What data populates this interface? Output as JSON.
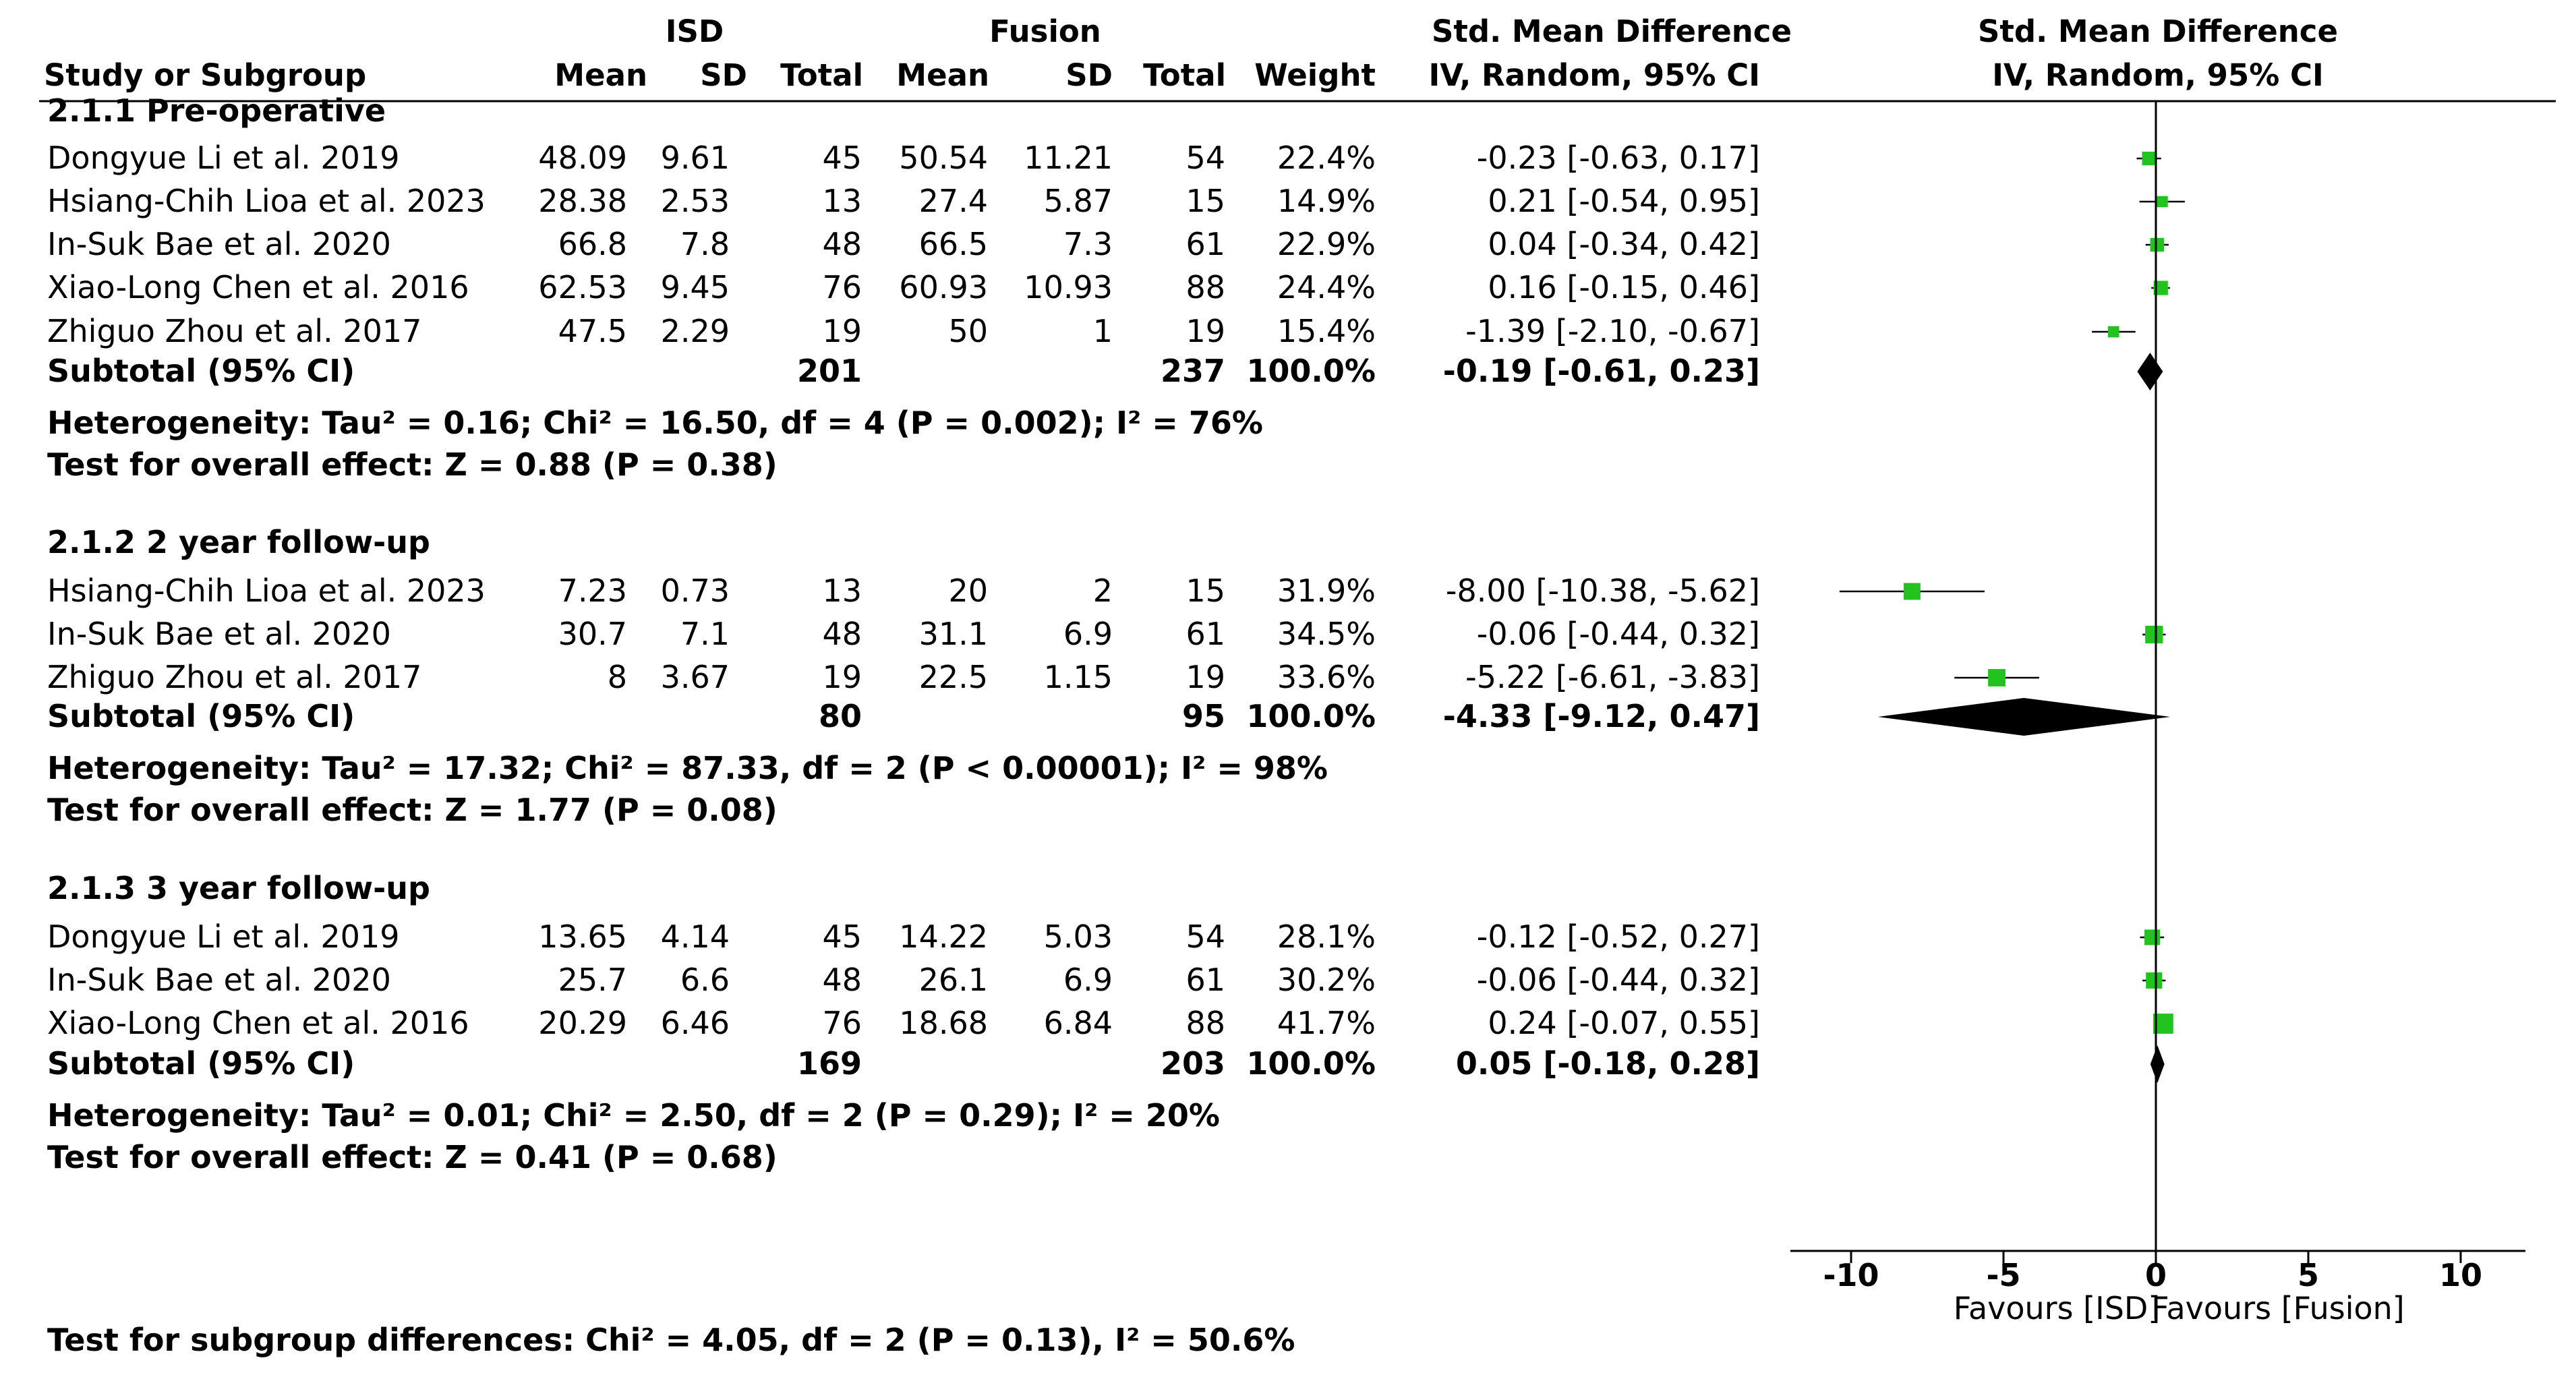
{
  "header": {
    "group1": "ISD",
    "group2": "Fusion",
    "smd_title": "Std. Mean Difference",
    "smd_method": "IV, Random, 95% CI",
    "plot_title": "Std. Mean Difference",
    "plot_method": "IV, Random, 95% CI",
    "col_study": "Study or Subgroup",
    "col_mean1": "Mean",
    "col_sd1": "SD",
    "col_total1": "Total",
    "col_mean2": "Mean",
    "col_sd2": "SD",
    "col_total2": "Total",
    "col_weight": "Weight"
  },
  "chart_data": {
    "type": "forest",
    "xlim": [
      -10,
      10
    ],
    "x_ticks": [
      "-10",
      "-5",
      "0",
      "5",
      "10"
    ],
    "x_ticks_values": [
      -10,
      -5,
      0,
      5,
      10
    ],
    "favours_left": "Favours [ISD]",
    "favours_right": "Favours [Fusion]",
    "marker_color": "#22c31e",
    "groups": [
      {
        "title": "2.1.1 Pre-operative",
        "studies": [
          {
            "name": "Dongyue Li et al. 2019",
            "mean1": "48.09",
            "sd1": "9.61",
            "n1": "45",
            "mean2": "50.54",
            "sd2": "11.21",
            "n2": "54",
            "weight": "22.4%",
            "ci": "-0.23 [-0.63, 0.17]",
            "est": -0.23,
            "lo": -0.63,
            "hi": 0.17,
            "w": 22.4
          },
          {
            "name": "Hsiang-Chih Lioa et al. 2023",
            "mean1": "28.38",
            "sd1": "2.53",
            "n1": "13",
            "mean2": "27.4",
            "sd2": "5.87",
            "n2": "15",
            "weight": "14.9%",
            "ci": "0.21 [-0.54, 0.95]",
            "est": 0.21,
            "lo": -0.54,
            "hi": 0.95,
            "w": 14.9
          },
          {
            "name": "In-Suk Bae et al. 2020",
            "mean1": "66.8",
            "sd1": "7.8",
            "n1": "48",
            "mean2": "66.5",
            "sd2": "7.3",
            "n2": "61",
            "weight": "22.9%",
            "ci": "0.04 [-0.34, 0.42]",
            "est": 0.04,
            "lo": -0.34,
            "hi": 0.42,
            "w": 22.9
          },
          {
            "name": "Xiao-Long Chen et al. 2016",
            "mean1": "62.53",
            "sd1": "9.45",
            "n1": "76",
            "mean2": "60.93",
            "sd2": "10.93",
            "n2": "88",
            "weight": "24.4%",
            "ci": "0.16 [-0.15, 0.46]",
            "est": 0.16,
            "lo": -0.15,
            "hi": 0.46,
            "w": 24.4
          },
          {
            "name": "Zhiguo Zhou et al. 2017",
            "mean1": "47.5",
            "sd1": "2.29",
            "n1": "19",
            "mean2": "50",
            "sd2": "1",
            "n2": "19",
            "weight": "15.4%",
            "ci": "-1.39 [-2.10, -0.67]",
            "est": -1.39,
            "lo": -2.1,
            "hi": -0.67,
            "w": 15.4
          }
        ],
        "subtotal": {
          "label": "Subtotal (95% CI)",
          "n1": "201",
          "n2": "237",
          "weight": "100.0%",
          "ci": "-0.19 [-0.61, 0.23]",
          "est": -0.19,
          "lo": -0.61,
          "hi": 0.23
        },
        "heterogeneity": "Heterogeneity: Tau² = 0.16; Chi² = 16.50, df = 4 (P = 0.002); I² = 76%",
        "overall": "Test for overall effect: Z = 0.88 (P = 0.38)"
      },
      {
        "title": "2.1.2 2 year follow-up",
        "studies": [
          {
            "name": "Hsiang-Chih Lioa et al. 2023",
            "mean1": "7.23",
            "sd1": "0.73",
            "n1": "13",
            "mean2": "20",
            "sd2": "2",
            "n2": "15",
            "weight": "31.9%",
            "ci": "-8.00 [-10.38, -5.62]",
            "est": -8.0,
            "lo": -10.38,
            "hi": -5.62,
            "w": 31.9
          },
          {
            "name": "In-Suk Bae et al. 2020",
            "mean1": "30.7",
            "sd1": "7.1",
            "n1": "48",
            "mean2": "31.1",
            "sd2": "6.9",
            "n2": "61",
            "weight": "34.5%",
            "ci": "-0.06 [-0.44, 0.32]",
            "est": -0.06,
            "lo": -0.44,
            "hi": 0.32,
            "w": 34.5
          },
          {
            "name": "Zhiguo Zhou et al. 2017",
            "mean1": "8",
            "sd1": "3.67",
            "n1": "19",
            "mean2": "22.5",
            "sd2": "1.15",
            "n2": "19",
            "weight": "33.6%",
            "ci": "-5.22 [-6.61, -3.83]",
            "est": -5.22,
            "lo": -6.61,
            "hi": -3.83,
            "w": 33.6
          }
        ],
        "subtotal": {
          "label": "Subtotal (95% CI)",
          "n1": "80",
          "n2": "95",
          "weight": "100.0%",
          "ci": "-4.33 [-9.12, 0.47]",
          "est": -4.33,
          "lo": -9.12,
          "hi": 0.47
        },
        "heterogeneity": "Heterogeneity: Tau² = 17.32; Chi² = 87.33, df = 2 (P < 0.00001); I² = 98%",
        "overall": "Test for overall effect: Z = 1.77 (P = 0.08)"
      },
      {
        "title": "2.1.3 3 year follow-up",
        "studies": [
          {
            "name": "Dongyue Li et al. 2019",
            "mean1": "13.65",
            "sd1": "4.14",
            "n1": "45",
            "mean2": "14.22",
            "sd2": "5.03",
            "n2": "54",
            "weight": "28.1%",
            "ci": "-0.12 [-0.52, 0.27]",
            "est": -0.12,
            "lo": -0.52,
            "hi": 0.27,
            "w": 28.1
          },
          {
            "name": "In-Suk Bae et al. 2020",
            "mean1": "25.7",
            "sd1": "6.6",
            "n1": "48",
            "mean2": "26.1",
            "sd2": "6.9",
            "n2": "61",
            "weight": "30.2%",
            "ci": "-0.06 [-0.44, 0.32]",
            "est": -0.06,
            "lo": -0.44,
            "hi": 0.32,
            "w": 30.2
          },
          {
            "name": "Xiao-Long Chen et al. 2016",
            "mean1": "20.29",
            "sd1": "6.46",
            "n1": "76",
            "mean2": "18.68",
            "sd2": "6.84",
            "n2": "88",
            "weight": "41.7%",
            "ci": "0.24 [-0.07, 0.55]",
            "est": 0.24,
            "lo": -0.07,
            "hi": 0.55,
            "w": 41.7
          }
        ],
        "subtotal": {
          "label": "Subtotal (95% CI)",
          "n1": "169",
          "n2": "203",
          "weight": "100.0%",
          "ci": "0.05 [-0.18, 0.28]",
          "est": 0.05,
          "lo": -0.18,
          "hi": 0.28
        },
        "heterogeneity": "Heterogeneity: Tau² = 0.01; Chi² = 2.50, df = 2 (P = 0.29); I² = 20%",
        "overall": "Test for overall effect: Z = 0.41 (P = 0.68)"
      }
    ],
    "subgroup_test": "Test for subgroup differences: Chi² = 4.05, df = 2 (P = 0.13), I² = 50.6%"
  }
}
